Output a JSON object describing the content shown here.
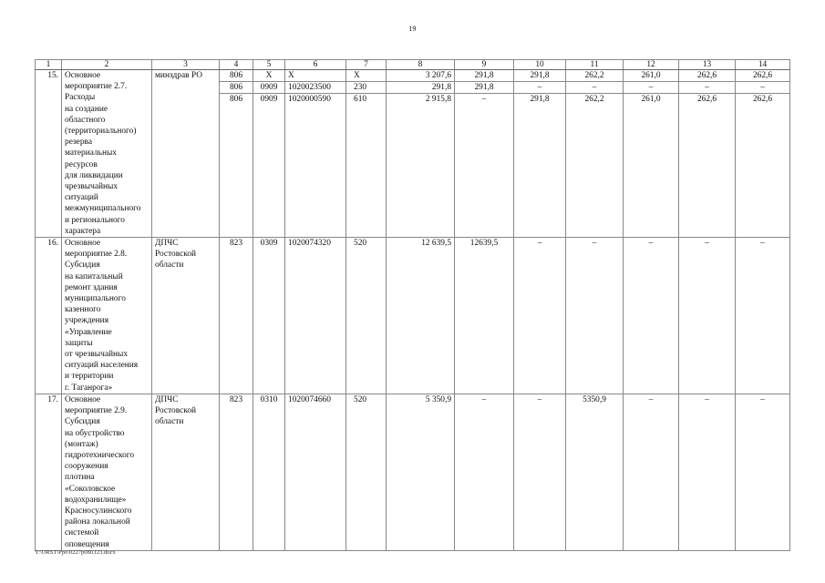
{
  "page_number": "19",
  "table": {
    "headers": [
      "1",
      "2",
      "3",
      "4",
      "5",
      "6",
      "7",
      "8",
      "9",
      "10",
      "11",
      "12",
      "13",
      "14"
    ],
    "rows": [
      {
        "num": "15.",
        "name": "Основное\nмероприятие 2.7.\nРасходы\nна создание\nобластного\n(территориального)\nрезерва\nматериальных\nресурсов\nдля ликвидации\nчрезвычайных\nситуаций\nмежмуниципального\nи регионального\nхарактера",
        "executor": "минздрав РО",
        "lines": [
          [
            "806",
            "Х",
            "Х",
            "Х",
            "3 207,6",
            "291,8",
            "291,8",
            "262,2",
            "261,0",
            "262,6",
            "262,6"
          ],
          [
            "806",
            "0909",
            "1020023500",
            "230",
            "291,8",
            "291,8",
            "–",
            "–",
            "–",
            "–",
            "–"
          ],
          [
            "806",
            "0909",
            "1020000590",
            "610",
            "2 915,8",
            "–",
            "291,8",
            "262,2",
            "261,0",
            "262,6",
            "262,6"
          ]
        ]
      },
      {
        "num": "16.",
        "name": "Основное\nмероприятие 2.8.\nСубсидия\nна капитальный\nремонт здания\nмуниципального\nказенного\nучреждения\n«Управление\nзащиты\nот чрезвычайных\nситуаций населения\nи территории\nг. Таганрога»",
        "executor": "ДПЧС\nРостовской\nобласти",
        "lines": [
          [
            "823",
            "0309",
            "1020074320",
            "520",
            "12 639,5",
            "12639,5",
            "–",
            "–",
            "–",
            "–",
            "–"
          ]
        ]
      },
      {
        "num": "17.",
        "name": "Основное\nмероприятие 2.9.\nСубсидия\nна обустройство\n(монтаж)\nгидротехнического\nсооружения\nплотина\n«Соколовское\nводохранилище»\nКрасносулинского\nрайона локальной\nсистемой\nоповещения",
        "executor": "ДПЧС\nРостовской\nобласти",
        "lines": [
          [
            "823",
            "0310",
            "1020074660",
            "520",
            "5 350,9",
            "–",
            "–",
            "5350,9",
            "–",
            "–",
            "–"
          ]
        ]
      }
    ]
  },
  "footer_path": "Y:\\ORST\\Ppo\\0227p080.f23.docx"
}
